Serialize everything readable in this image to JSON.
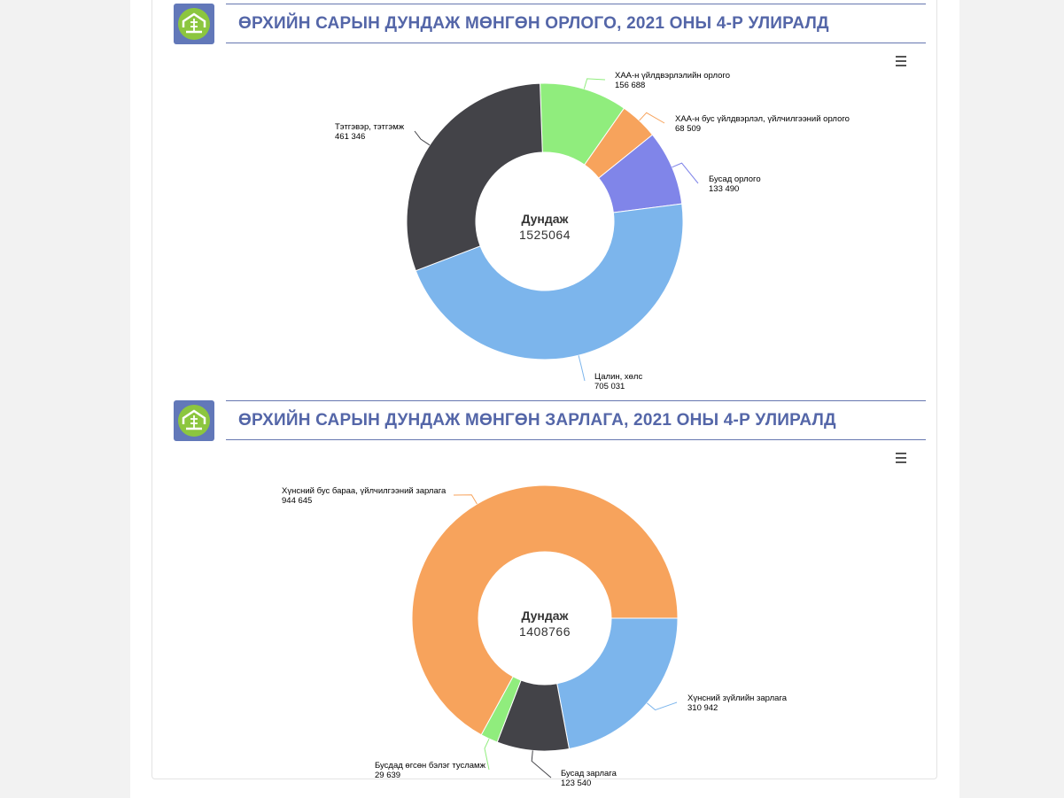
{
  "charts": [
    {
      "title": "ӨРХИЙН САРЫН ДУНДАЖ МӨНГӨН ОРЛОГО, 2021 ОНЫ 4-Р УЛИРАЛД",
      "center_label": "Дундаж",
      "center_value": "1525064",
      "chart_data": {
        "type": "pie",
        "title": "ӨРХИЙН САРЫН ДУНДАЖ МӨНГӨН ОРЛОГО, 2021 ОНЫ 4-Р УЛИРАЛД",
        "slices": [
          {
            "name": "ХАА-н үйлдвэрлэлийн орлого",
            "value": 156688,
            "value_label": "156 688",
            "color": "#90ed7d"
          },
          {
            "name": "ХАА-н бус үйлдвэрлэл, үйлчилгээний орлого",
            "value": 68509,
            "value_label": "68 509",
            "color": "#f7a35c"
          },
          {
            "name": "Бусад орлого",
            "value": 133490,
            "value_label": "133 490",
            "color": "#8085e9"
          },
          {
            "name": "Цалин, хөлс",
            "value": 705031,
            "value_label": "705 031",
            "color": "#7cb5ec"
          },
          {
            "name": "Тэтгэвэр, тэтгэмж",
            "value": 461346,
            "value_label": "461 346",
            "color": "#434348"
          }
        ]
      }
    },
    {
      "title": "ӨРХИЙН САРЫН ДУНДАЖ МӨНГӨН ЗАРЛАГА, 2021 ОНЫ 4-Р УЛИРАЛД",
      "center_label": "Дундаж",
      "center_value": "1408766",
      "chart_data": {
        "type": "pie",
        "title": "ӨРХИЙН САРЫН ДУНДАЖ МӨНГӨН ЗАРЛАГА, 2021 ОНЫ 4-Р УЛИРАЛД",
        "slices": [
          {
            "name": "Хүнсний зүйлийн зарлага",
            "value": 310942,
            "value_label": "310 942",
            "color": "#7cb5ec"
          },
          {
            "name": "Бусад зарлага",
            "value": 123540,
            "value_label": "123 540",
            "color": "#434348"
          },
          {
            "name": "Бусдад өгсөн бэлэг тусламж",
            "value": 29639,
            "value_label": "29 639",
            "color": "#90ed7d"
          },
          {
            "name": "Хүнсний бус бараа, үйлчилгээний зарлага",
            "value": 944645,
            "value_label": "944 645",
            "color": "#f7a35c"
          }
        ]
      }
    }
  ]
}
